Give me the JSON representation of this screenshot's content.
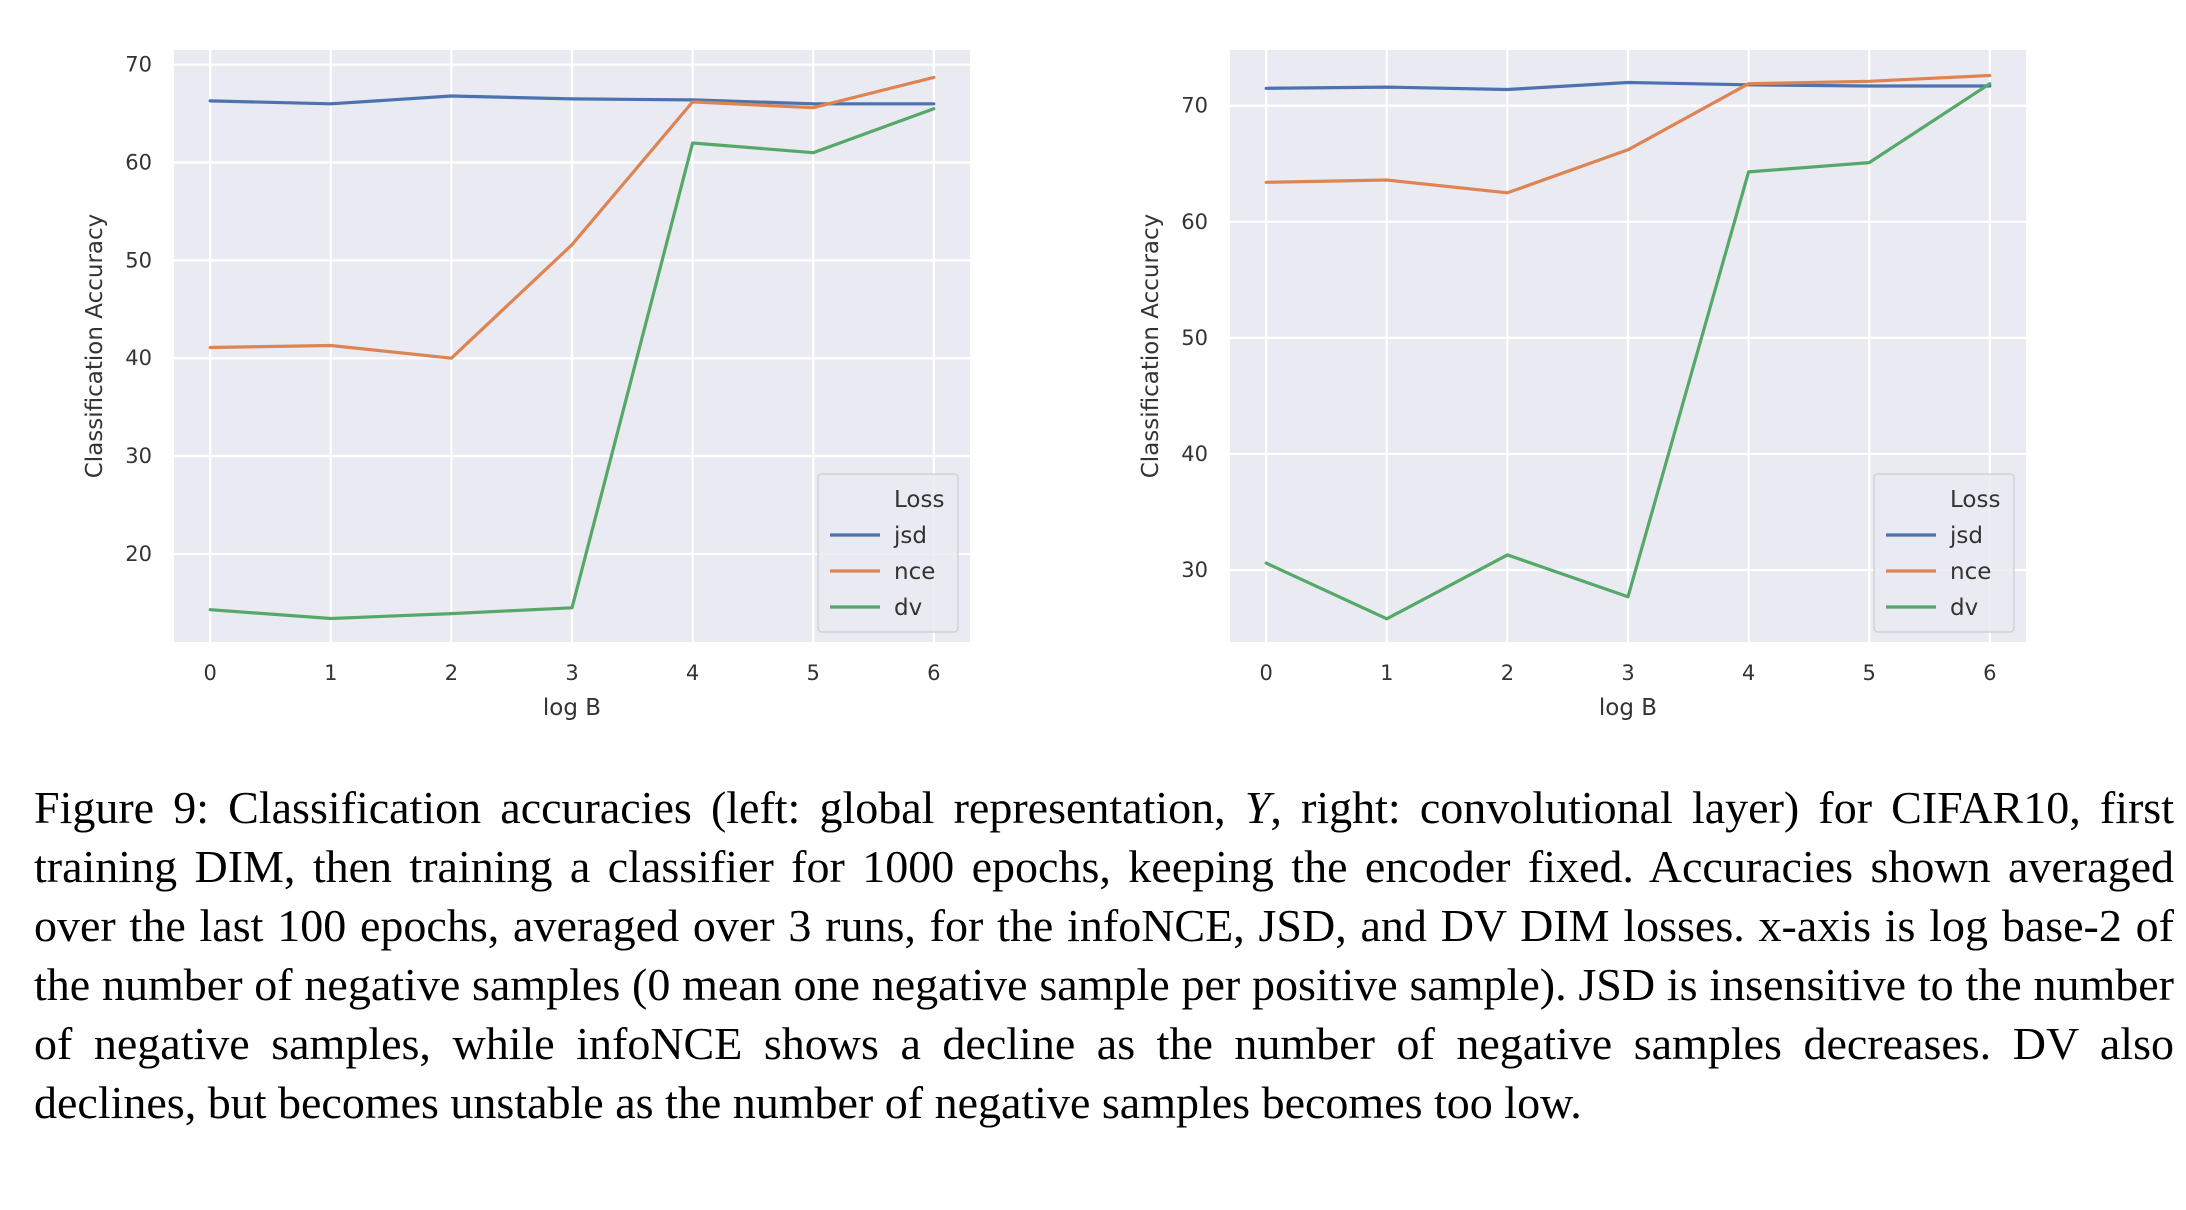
{
  "chart_data": [
    {
      "type": "line",
      "panel": "left",
      "x": [
        0,
        1,
        2,
        3,
        4,
        5,
        6
      ],
      "xlabel": "log B",
      "ylabel": "Classification Accuracy",
      "xticks": [
        "0",
        "1",
        "2",
        "3",
        "4",
        "5",
        "6"
      ],
      "yticks": [
        "20",
        "30",
        "40",
        "50",
        "60",
        "70"
      ],
      "ylim": [
        11,
        71.5
      ],
      "xlim": [
        -0.3,
        6.3
      ],
      "grid": true,
      "legend": {
        "title": "Loss",
        "placement": "lower-right"
      },
      "series": [
        {
          "name": "jsd",
          "color": "#4c72b0",
          "values": [
            66.3,
            66.0,
            66.8,
            66.5,
            66.4,
            66.0,
            66.0
          ]
        },
        {
          "name": "nce",
          "color": "#dd8452",
          "values": [
            41.1,
            41.3,
            40.0,
            51.6,
            66.2,
            65.6,
            68.7
          ]
        },
        {
          "name": "dv",
          "color": "#55a868",
          "values": [
            14.3,
            13.4,
            13.9,
            14.5,
            62.0,
            61.0,
            65.5
          ]
        }
      ]
    },
    {
      "type": "line",
      "panel": "right",
      "x": [
        0,
        1,
        2,
        3,
        4,
        5,
        6
      ],
      "xlabel": "log B",
      "ylabel": "Classification Accuracy",
      "xticks": [
        "0",
        "1",
        "2",
        "3",
        "4",
        "5",
        "6"
      ],
      "yticks": [
        "30",
        "40",
        "50",
        "60",
        "70"
      ],
      "ylim": [
        23.8,
        74.8
      ],
      "xlim": [
        -0.3,
        6.3
      ],
      "grid": true,
      "legend": {
        "title": "Loss",
        "placement": "lower-right"
      },
      "series": [
        {
          "name": "jsd",
          "color": "#4c72b0",
          "values": [
            71.5,
            71.6,
            71.4,
            72.0,
            71.8,
            71.7,
            71.7
          ]
        },
        {
          "name": "nce",
          "color": "#dd8452",
          "values": [
            63.4,
            63.6,
            62.5,
            66.2,
            71.9,
            72.1,
            72.6
          ]
        },
        {
          "name": "dv",
          "color": "#55a868",
          "values": [
            30.6,
            25.8,
            31.3,
            27.7,
            64.3,
            65.1,
            71.9
          ]
        }
      ]
    }
  ],
  "caption": {
    "label": "Figure 9:",
    "before_var": " Classification accuracies (left: global representation, ",
    "var": "Y",
    "after_var": ", right: convolutional layer) for CIFAR10, first training DIM, then training a classifier for 1000 epochs, keeping the encoder fixed. Accuracies shown averaged over the last 100 epochs, averaged over 3 runs, for the infoNCE, JSD, and DV DIM losses. x-axis is log base-2 of the number of negative samples (0 mean one negative sample per positive sample). JSD is insensitive to the number of negative samples, while infoNCE shows a decline as the number of negative samples decreases. DV also declines, but becomes unstable as the number of negative samples becomes too low."
  },
  "style": {
    "plot_bg": "#eaeaf2",
    "grid": "#ffffff",
    "legend_bg": "#eaeaf2",
    "legend_border": "#cccccc"
  }
}
